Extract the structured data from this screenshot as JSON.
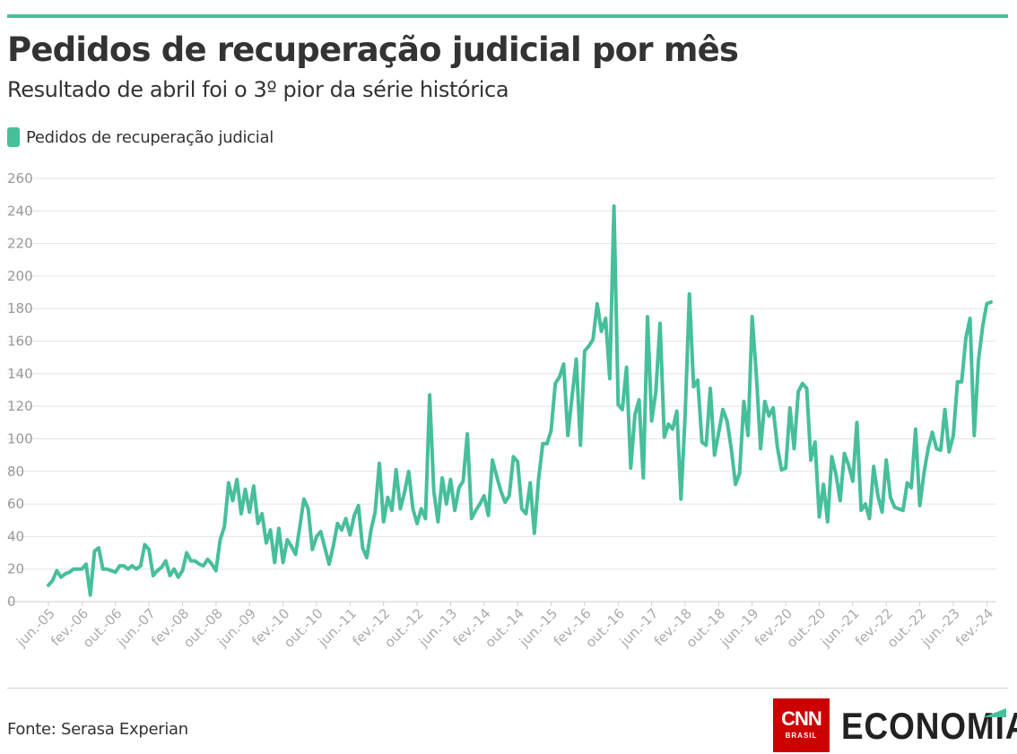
{
  "header": {
    "title": "Pedidos de recuperação judicial por mês",
    "subtitle": "Resultado de abril foi o 3º pior da série histórica"
  },
  "legend": {
    "label": "Pedidos de recuperação judicial",
    "color": "#46bf9a"
  },
  "footer": {
    "source": "Fonte: Serasa Experian",
    "brand_cnn": "CNN",
    "brand_cnn_sub": "BRASIL",
    "brand_section": "ECONOMIA",
    "brand_red": "#cc0000"
  },
  "chart_data": {
    "type": "line",
    "ylim": [
      0,
      260
    ],
    "y_ticks": [
      0,
      20,
      40,
      60,
      80,
      100,
      120,
      140,
      160,
      180,
      200,
      220,
      240,
      260
    ],
    "grid": true,
    "legend_position": "top-left",
    "x_tick_labels": [
      "jun.-05",
      "fev.-06",
      "out.-06",
      "jun.-07",
      "fev.-08",
      "out.-08",
      "jun.-09",
      "fev.-10",
      "out.-10",
      "jun.-11",
      "fev.-12",
      "out.-12",
      "jun.-13",
      "fev.-14",
      "out.-14",
      "jun.-15",
      "fev.-16",
      "out.-16",
      "jun.-17",
      "fev.-18",
      "out.-18",
      "jun.-19",
      "fev.-20",
      "out.-20",
      "jun.-21",
      "fev.-22",
      "out.-22",
      "jun.-23",
      "fev.-24"
    ],
    "x_tick_every_months": 8,
    "series": [
      {
        "name": "Pedidos de recuperação judicial",
        "color": "#46bf9a",
        "start": "jun.-05",
        "values": [
          10,
          13,
          19,
          15,
          17,
          18,
          20,
          20,
          20,
          23,
          4,
          31,
          33,
          20,
          20,
          19,
          18,
          22,
          22,
          20,
          22,
          20,
          22,
          35,
          32,
          16,
          19,
          21,
          25,
          16,
          20,
          15,
          19,
          30,
          25,
          25,
          23,
          22,
          26,
          23,
          19,
          38,
          46,
          73,
          62,
          75,
          54,
          69,
          55,
          71,
          48,
          54,
          36,
          44,
          24,
          45,
          24,
          38,
          34,
          29,
          46,
          63,
          57,
          32,
          40,
          43,
          33,
          23,
          34,
          48,
          44,
          51,
          41,
          53,
          59,
          33,
          27,
          44,
          55,
          85,
          49,
          64,
          56,
          81,
          57,
          67,
          80,
          57,
          48,
          57,
          51,
          127,
          68,
          49,
          76,
          60,
          75,
          56,
          70,
          74,
          103,
          51,
          56,
          60,
          65,
          53,
          87,
          77,
          68,
          61,
          65,
          89,
          86,
          57,
          54,
          73,
          42,
          75,
          97,
          97,
          105,
          134,
          138,
          146,
          102,
          126,
          149,
          96,
          154,
          157,
          161,
          183,
          166,
          174,
          137,
          243,
          121,
          118,
          144,
          82,
          115,
          124,
          76,
          175,
          111,
          129,
          171,
          101,
          109,
          106,
          117,
          63,
          115,
          189,
          132,
          136,
          98,
          96,
          131,
          90,
          104,
          118,
          111,
          94,
          72,
          79,
          123,
          102,
          175,
          139,
          94,
          123,
          114,
          119,
          95,
          81,
          82,
          119,
          94,
          129,
          134,
          131,
          87,
          98,
          52,
          72,
          49,
          89,
          78,
          62,
          91,
          84,
          74,
          110,
          56,
          60,
          51,
          83,
          65,
          55,
          87,
          64,
          58,
          57,
          56,
          73,
          70,
          106,
          59,
          79,
          94,
          104,
          94,
          93,
          118,
          92,
          102,
          135,
          135,
          162,
          174,
          102,
          148,
          169,
          183,
          184
        ]
      }
    ]
  }
}
